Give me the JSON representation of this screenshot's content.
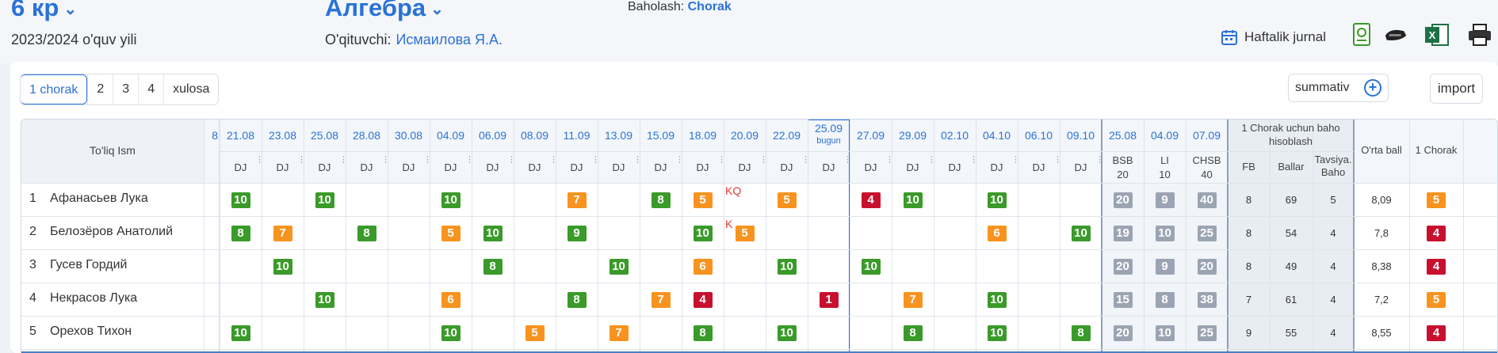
{
  "header": {
    "class_name": "6 кр",
    "subject": "Алгебра",
    "grading_label": "Baholash:",
    "grading_value": "Chorak",
    "year": "2023/2024 o'quv yili",
    "teacher_label": "O'qituvchi:",
    "teacher_name": "Исмаилова Я.А.",
    "weekly_label": "Haftalik jurnal"
  },
  "tabs": [
    "1 chorak",
    "2",
    "3",
    "4",
    "xulosa"
  ],
  "summ_label": "summativ",
  "import_label": "import",
  "table": {
    "name_header": "To'liq Ism",
    "dates": [
      "21.08",
      "23.08",
      "25.08",
      "28.08",
      "30.08",
      "04.09",
      "06.09",
      "08.09",
      "11.09",
      "13.09",
      "15.09",
      "18.09",
      "20.09",
      "22.09",
      "25.09",
      "27.09",
      "29.09",
      "02.10",
      "04.10",
      "06.10",
      "09.10"
    ],
    "today_index": 14,
    "today_label": "bugun",
    "dj_label": "DJ",
    "assess_dates": [
      "25.08",
      "04.09",
      "07.09"
    ],
    "assess_types": [
      "BSB",
      "LI",
      "CHSB"
    ],
    "assess_max": [
      "20",
      "10",
      "40"
    ],
    "summary_header": "1 Chorak uchun baho hisoblash",
    "summary_cols": [
      "FB",
      "Ballar",
      "Tavsiya. Baho"
    ],
    "avg_header": "O'rta ball",
    "quarter_header": "1 Chorak",
    "rows": [
      {
        "no": "1",
        "name": "Афанасьев Лука",
        "grades": {
          "0": "10",
          "2": "10",
          "5": "10",
          "8": "7",
          "10": "8",
          "11": "5",
          "13": "5",
          "15": "4",
          "16": "10",
          "18": "10"
        },
        "note": {
          "12": "KQ"
        },
        "assess": [
          "20",
          "9",
          "40"
        ],
        "fb": "8",
        "ball": "69",
        "tav": "5",
        "avg": "8,09",
        "q": "5"
      },
      {
        "no": "2",
        "name": "Белозёров Анатолий",
        "grades": {
          "0": "8",
          "1": "7",
          "3": "8",
          "5": "5",
          "6": "10",
          "8": "9",
          "11": "10",
          "12": "5",
          "18": "6",
          "20": "10"
        },
        "note": {
          "12": "K"
        },
        "assess": [
          "19",
          "10",
          "25"
        ],
        "fb": "8",
        "ball": "54",
        "tav": "4",
        "avg": "7,8",
        "q": "4"
      },
      {
        "no": "3",
        "name": "Гусев Гордий",
        "grades": {
          "1": "10",
          "6": "8",
          "9": "10",
          "11": "6",
          "13": "10",
          "15": "10"
        },
        "note": {},
        "assess": [
          "20",
          "9",
          "20"
        ],
        "fb": "8",
        "ball": "49",
        "tav": "4",
        "avg": "8,38",
        "q": "4"
      },
      {
        "no": "4",
        "name": "Некрасов Лука",
        "grades": {
          "2": "10",
          "5": "6",
          "8": "8",
          "10": "7",
          "11": "4",
          "14": "1",
          "16": "7",
          "18": "10"
        },
        "note": {},
        "assess": [
          "15",
          "8",
          "38"
        ],
        "fb": "7",
        "ball": "61",
        "tav": "4",
        "avg": "7,2",
        "q": "5"
      },
      {
        "no": "5",
        "name": "Орехов Тихон",
        "grades": {
          "0": "10",
          "5": "10",
          "7": "5",
          "9": "7",
          "11": "8",
          "13": "10",
          "16": "8",
          "18": "10",
          "20": "8"
        },
        "note": {},
        "assess": [
          "20",
          "10",
          "25"
        ],
        "fb": "9",
        "ball": "55",
        "tav": "4",
        "avg": "8,55",
        "q": "4"
      }
    ]
  },
  "colors": {
    "green": "#3a9a2a",
    "orange": "#f7931e",
    "red": "#c8102e",
    "blue": "#2a72d6"
  }
}
